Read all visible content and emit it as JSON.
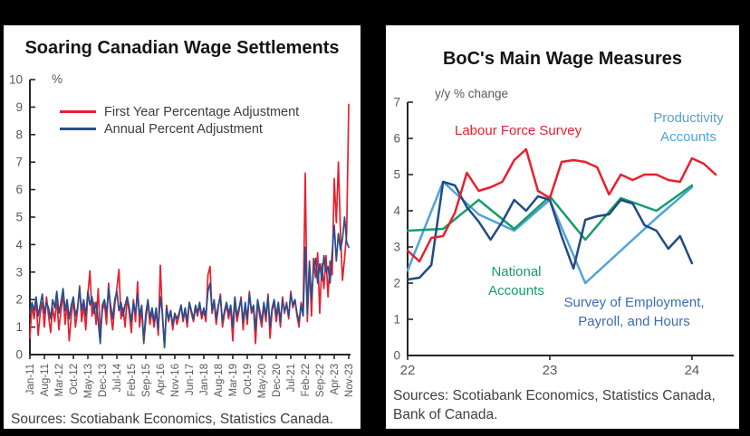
{
  "frame": {
    "background_color": "#000000",
    "panel_color": "#ffffff"
  },
  "chart_data": [
    {
      "type": "line",
      "title": "Soaring Canadian Wage Settlements",
      "ylabel": "%",
      "ylim": [
        0,
        10
      ],
      "ytick_step": 1,
      "grid": false,
      "legend_position": "top-left-inside",
      "x_unit": "months, monthly data starting Jan-2011",
      "xtick_month_step": 7,
      "xtick_labels": [
        "Jan-11",
        "Aug-11",
        "Mar-12",
        "Oct-12",
        "May-13",
        "Dec-13",
        "Jul-14",
        "Feb-15",
        "Sep-15",
        "Apr-16",
        "Nov-16",
        "Jun-17",
        "Jan-18",
        "Aug-18",
        "Mar-19",
        "Oct-19",
        "May-20",
        "Dec-20",
        "Jul-21",
        "Feb-22",
        "Sep-22",
        "Apr-23",
        "Nov-23"
      ],
      "series": [
        {
          "name": "First Year Percentage Adjustment",
          "color": "#e81f2e",
          "x_start": 0,
          "x_step": 1,
          "values": [
            0.6,
            1.8,
            1.3,
            2.0,
            0.7,
            1.5,
            1.9,
            1.0,
            2.1,
            1.4,
            0.8,
            1.7,
            1.2,
            2.0,
            0.9,
            1.6,
            2.2,
            1.1,
            1.9,
            0.5,
            1.4,
            2.0,
            1.0,
            1.6,
            2.5,
            1.2,
            1.8,
            0.9,
            2.2,
            3.05,
            1.4,
            1.9,
            1.1,
            2.4,
            0.8,
            1.6,
            1.9,
            1.1,
            2.6,
            1.5,
            0.9,
            1.8,
            2.4,
            3.1,
            1.3,
            1.7,
            1.0,
            2.1,
            1.5,
            0.8,
            2.0,
            1.2,
            2.65,
            1.0,
            1.7,
            0.4,
            1.3,
            1.9,
            1.1,
            1.6,
            1.0,
            1.6,
            0.7,
            3.25,
            1.4,
            0.3,
            1.8,
            1.2,
            1.6,
            0.9,
            1.5,
            1.1,
            1.4,
            1.8,
            1.2,
            1.6,
            1.0,
            1.9,
            1.5,
            1.2,
            1.7,
            1.4,
            1.8,
            1.3,
            1.6,
            1.2,
            2.9,
            3.2,
            1.5,
            1.9,
            1.1,
            1.7,
            2.2,
            1.0,
            1.5,
            1.8,
            1.3,
            1.7,
            0.5,
            2.0,
            1.2,
            1.6,
            2.1,
            0.9,
            1.8,
            1.1,
            2.3,
            1.5,
            1.7,
            0.4,
            1.9,
            1.4,
            1.0,
            1.8,
            1.2,
            2.2,
            0.6,
            1.6,
            1.9,
            1.2,
            1.8,
            1.0,
            2.1,
            1.5,
            1.9,
            1.3,
            2.3,
            1.7,
            2.0,
            1.4,
            1.0,
            1.9,
            1.6,
            6.6,
            1.2,
            3.3,
            1.4,
            3.5,
            2.8,
            3.7,
            1.5,
            3.3,
            2.4,
            3.6,
            2.1,
            3.4,
            2.9,
            6.4,
            4.8,
            7.0,
            4.4,
            2.7,
            3.5,
            4.4,
            9.1
          ]
        },
        {
          "name": "Annual Percent Adjustment",
          "color": "#274f8e",
          "x_start": 0,
          "x_step": 1,
          "values": [
            1.5,
            1.9,
            1.6,
            2.1,
            1.4,
            1.8,
            2.2,
            1.5,
            1.9,
            1.7,
            1.3,
            2.0,
            1.7,
            2.3,
            1.5,
            1.9,
            2.4,
            1.6,
            2.0,
            1.3,
            1.8,
            2.1,
            1.4,
            1.7,
            2.4,
            1.6,
            2.0,
            1.4,
            2.3,
            1.8,
            2.1,
            1.5,
            1.9,
            1.2,
            0.4,
            1.8,
            2.0,
            1.5,
            2.4,
            1.8,
            1.3,
            2.0,
            2.3,
            1.6,
            1.9,
            1.4,
            1.8,
            2.1,
            1.7,
            1.2,
            1.9,
            1.5,
            2.2,
            1.4,
            1.8,
            0.5,
            1.5,
            2.0,
            1.3,
            1.7,
            1.2,
            1.7,
            0.9,
            2.1,
            1.5,
            0.25,
            1.7,
            1.3,
            1.6,
            1.1,
            1.5,
            1.3,
            1.5,
            1.8,
            1.3,
            1.7,
            1.2,
            1.9,
            1.6,
            1.3,
            1.8,
            1.5,
            1.9,
            1.4,
            1.7,
            1.4,
            2.3,
            2.6,
            1.6,
            2.0,
            1.3,
            1.8,
            2.1,
            1.2,
            1.6,
            1.9,
            1.5,
            1.8,
            1.0,
            2.1,
            1.4,
            1.7,
            2.0,
            1.2,
            1.9,
            1.3,
            2.2,
            1.6,
            1.8,
            0.9,
            2.0,
            1.6,
            1.2,
            1.9,
            1.4,
            2.1,
            1.0,
            1.7,
            2.0,
            1.4,
            1.9,
            1.2,
            2.0,
            1.6,
            1.8,
            1.4,
            2.2,
            1.8,
            2.0,
            1.5,
            1.2,
            1.8,
            1.4,
            3.9,
            1.5,
            3.4,
            2.0,
            3.1,
            3.5,
            2.6,
            3.3,
            2.7,
            3.6,
            3.0,
            3.2,
            2.6,
            3.7,
            4.7,
            3.4,
            4.4,
            3.8,
            4.2,
            5.0,
            4.1,
            3.9
          ]
        }
      ],
      "source": "Sources: Scotiabank Economics, Statistics Canada."
    },
    {
      "type": "line",
      "title": "BoC's Main Wage Measures",
      "ylabel": "y/y % change",
      "ylim": [
        0,
        7
      ],
      "ytick_step": 1,
      "grid": false,
      "x_unit": "months from Jan-2022 (first point Dec-2021 on axis)",
      "xtick_positions": [
        0,
        12,
        24
      ],
      "xtick_labels": [
        "22",
        "23",
        "24"
      ],
      "series": [
        {
          "name": "Productivity Accounts",
          "color": "#4fa3da",
          "x": [
            -1,
            2,
            5,
            8,
            11,
            14,
            17,
            20,
            23
          ],
          "values": [
            2.35,
            4.8,
            3.9,
            3.45,
            4.3,
            2.0,
            2.9,
            3.8,
            4.65
          ]
        },
        {
          "name": "National Accounts",
          "color": "#139e67",
          "x": [
            -1,
            2,
            5,
            8,
            11,
            14,
            17,
            20,
            23
          ],
          "values": [
            3.45,
            3.5,
            4.3,
            3.5,
            4.4,
            3.2,
            4.35,
            4.0,
            4.7
          ]
        },
        {
          "name": "Survey of Employment, Payroll, and Hours",
          "color": "#204b84",
          "x_start": -1,
          "x_step": 1,
          "values": [
            2.1,
            2.15,
            2.5,
            4.8,
            4.7,
            4.1,
            3.7,
            3.2,
            3.7,
            4.3,
            4.0,
            4.4,
            4.3,
            3.3,
            2.4,
            3.75,
            3.85,
            3.9,
            4.3,
            4.2,
            3.6,
            3.45,
            2.95,
            3.3,
            2.55
          ]
        },
        {
          "name": "Labour Force Survey",
          "color": "#e81f2e",
          "x_start": -1,
          "x_step": 1,
          "values": [
            2.9,
            2.6,
            3.25,
            3.3,
            3.95,
            5.05,
            4.55,
            4.65,
            4.8,
            5.4,
            5.7,
            4.55,
            4.35,
            5.35,
            5.4,
            5.35,
            5.2,
            4.45,
            5.0,
            4.85,
            5.0,
            5.0,
            4.85,
            4.8,
            5.45,
            5.3,
            5.0
          ]
        }
      ],
      "annotations": [
        {
          "text": "Labour Force Survey",
          "color": "#e81f2e"
        },
        {
          "text": "Productivity Accounts",
          "color": "#4fa3da"
        },
        {
          "text": "National Accounts",
          "color": "#139e67"
        },
        {
          "text": "Survey of Employment, Payroll, and Hours",
          "color": "#3a6cb5"
        }
      ],
      "source": "Sources: Scotiabank Economics, Statistics Canada, Bank of Canada."
    }
  ]
}
